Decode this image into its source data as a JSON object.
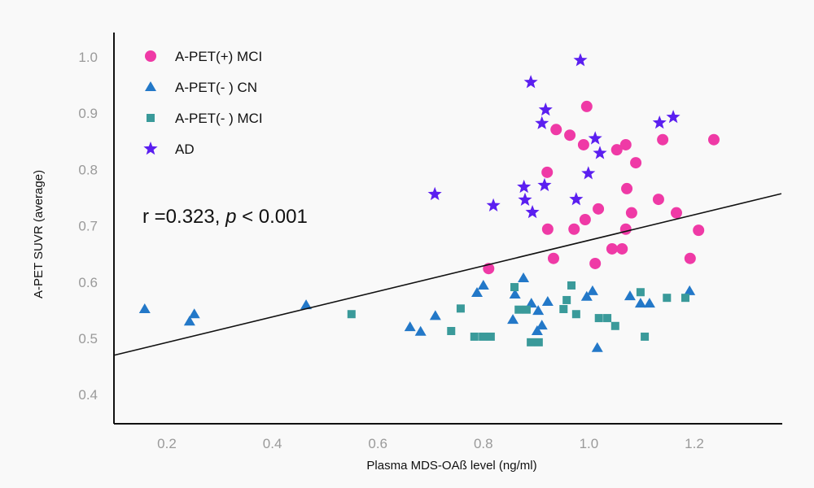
{
  "chart_data": {
    "type": "scatter",
    "title": "",
    "xlabel": "Plasma MDS-OAß level (ng/ml)",
    "ylabel": "A-PET SUVR (average)",
    "xlim": [
      0.1,
      1.365
    ],
    "ylim": [
      0.345,
      1.035
    ],
    "xticks": [
      0.2,
      0.4,
      0.6,
      0.8,
      1.0,
      1.2
    ],
    "xtick_labels": [
      "0.2",
      "0.4",
      "0.6",
      "0.8",
      "1.0",
      "1.2"
    ],
    "yticks": [
      0.4,
      0.5,
      0.6,
      0.7,
      0.8,
      0.9,
      1.0
    ],
    "ytick_labels": [
      "0.4",
      "0.5",
      "0.6",
      "0.7",
      "0.8",
      "0.9",
      "1.0"
    ],
    "grid": false,
    "legend_position": "top-left",
    "annotation": {
      "prefix": "r =0.323, ",
      "italic": "p",
      "suffix": " < 0.001"
    },
    "fit_line": {
      "x": [
        0.1,
        1.365
      ],
      "y": [
        0.47,
        0.757
      ]
    },
    "series": [
      {
        "name": "A-PET(+) MCI",
        "marker": "circle",
        "color": "#ef3aa6",
        "points": [
          [
            0.996,
            0.912
          ],
          [
            0.938,
            0.871
          ],
          [
            0.964,
            0.861
          ],
          [
            0.99,
            0.844
          ],
          [
            1.053,
            0.835
          ],
          [
            1.07,
            0.844
          ],
          [
            0.921,
            0.795
          ],
          [
            1.14,
            0.853
          ],
          [
            1.237,
            0.853
          ],
          [
            1.089,
            0.812
          ],
          [
            1.072,
            0.766
          ],
          [
            1.132,
            0.747
          ],
          [
            1.018,
            0.73
          ],
          [
            1.081,
            0.723
          ],
          [
            1.166,
            0.723
          ],
          [
            0.993,
            0.711
          ],
          [
            0.922,
            0.694
          ],
          [
            0.972,
            0.694
          ],
          [
            1.07,
            0.694
          ],
          [
            1.208,
            0.692
          ],
          [
            1.044,
            0.659
          ],
          [
            1.063,
            0.659
          ],
          [
            0.933,
            0.642
          ],
          [
            1.192,
            0.642
          ],
          [
            1.012,
            0.633
          ],
          [
            0.81,
            0.624
          ]
        ]
      },
      {
        "name": "A-PET(- ) CN",
        "marker": "triangle",
        "color": "#2378c8",
        "points": [
          [
            0.158,
            0.552
          ],
          [
            0.252,
            0.543
          ],
          [
            0.243,
            0.53
          ],
          [
            0.464,
            0.559
          ],
          [
            0.661,
            0.52
          ],
          [
            0.681,
            0.512
          ],
          [
            0.709,
            0.54
          ],
          [
            0.8,
            0.594
          ],
          [
            0.788,
            0.581
          ],
          [
            0.876,
            0.607
          ],
          [
            0.86,
            0.578
          ],
          [
            0.891,
            0.562
          ],
          [
            0.922,
            0.565
          ],
          [
            0.904,
            0.549
          ],
          [
            0.856,
            0.533
          ],
          [
            0.911,
            0.523
          ],
          [
            0.902,
            0.513
          ],
          [
            1.007,
            0.584
          ],
          [
            0.996,
            0.574
          ],
          [
            1.078,
            0.575
          ],
          [
            1.098,
            0.562
          ],
          [
            1.115,
            0.562
          ],
          [
            1.016,
            0.483
          ],
          [
            1.191,
            0.584
          ]
        ]
      },
      {
        "name": "A-PET(- ) MCI",
        "marker": "square",
        "color": "#3a9a9a",
        "points": [
          [
            0.55,
            0.543
          ],
          [
            0.757,
            0.553
          ],
          [
            0.739,
            0.513
          ],
          [
            0.783,
            0.503
          ],
          [
            0.799,
            0.503
          ],
          [
            0.814,
            0.503
          ],
          [
            0.859,
            0.591
          ],
          [
            0.867,
            0.551
          ],
          [
            0.882,
            0.551
          ],
          [
            0.89,
            0.493
          ],
          [
            0.905,
            0.493
          ],
          [
            0.967,
            0.594
          ],
          [
            0.958,
            0.568
          ],
          [
            0.952,
            0.552
          ],
          [
            0.976,
            0.543
          ],
          [
            1.019,
            0.536
          ],
          [
            1.035,
            0.536
          ],
          [
            1.05,
            0.522
          ],
          [
            1.098,
            0.582
          ],
          [
            1.106,
            0.503
          ],
          [
            1.148,
            0.572
          ],
          [
            1.183,
            0.572
          ]
        ]
      },
      {
        "name": "AD",
        "marker": "star",
        "color": "#5b1ff0",
        "points": [
          [
            0.984,
            0.994
          ],
          [
            0.89,
            0.955
          ],
          [
            0.918,
            0.906
          ],
          [
            0.911,
            0.882
          ],
          [
            1.012,
            0.855
          ],
          [
            1.021,
            0.829
          ],
          [
            0.999,
            0.793
          ],
          [
            1.134,
            0.883
          ],
          [
            1.16,
            0.893
          ],
          [
            0.708,
            0.756
          ],
          [
            0.819,
            0.736
          ],
          [
            0.877,
            0.769
          ],
          [
            0.916,
            0.772
          ],
          [
            0.879,
            0.746
          ],
          [
            0.976,
            0.747
          ],
          [
            0.893,
            0.724
          ]
        ]
      }
    ]
  }
}
